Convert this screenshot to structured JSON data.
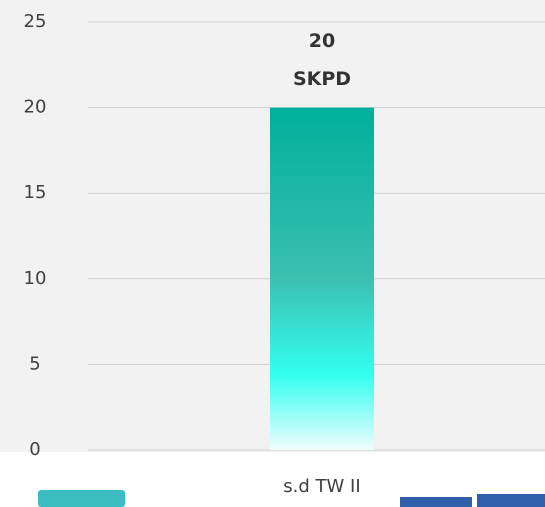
{
  "chart_data": {
    "type": "bar",
    "categories": [
      "s.d TW II"
    ],
    "values": [
      20
    ],
    "unit_label": "SKPD",
    "color": "#00b09b",
    "ylim": [
      0,
      25
    ],
    "yticks": [
      0,
      5,
      10,
      15,
      20,
      25
    ],
    "grid": true
  }
}
